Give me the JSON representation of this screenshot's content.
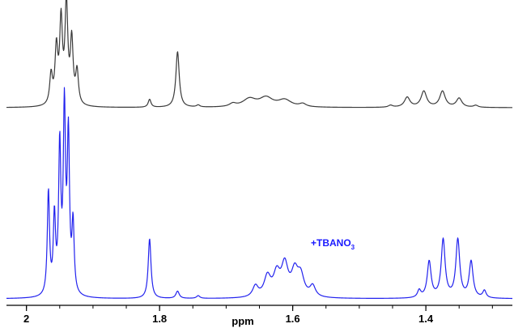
{
  "chart_data": {
    "type": "line",
    "xlabel": "ppm",
    "x_reversed": true,
    "xlim": [
      2.03,
      1.27
    ],
    "x_ticks": [
      {
        "value": 2.0,
        "label": "2"
      },
      {
        "value": 1.8,
        "label": "1.8"
      },
      {
        "value": 1.6,
        "label": "1.6"
      },
      {
        "value": 1.4,
        "label": "1.4"
      }
    ],
    "annotation": {
      "main": "+TBANO",
      "subscript": "3"
    },
    "series": [
      {
        "color": "#3a3a3a",
        "intensity_max": 100,
        "peaks": [
          {
            "ppm": 1.963,
            "height": 30,
            "width": 0.0025
          },
          {
            "ppm": 1.955,
            "height": 55,
            "width": 0.0025
          },
          {
            "ppm": 1.948,
            "height": 82,
            "width": 0.0025
          },
          {
            "ppm": 1.94,
            "height": 100,
            "width": 0.0025
          },
          {
            "ppm": 1.932,
            "height": 63,
            "width": 0.0025
          },
          {
            "ppm": 1.924,
            "height": 33,
            "width": 0.0025
          },
          {
            "ppm": 1.815,
            "height": 8,
            "width": 0.0025
          },
          {
            "ppm": 1.773,
            "height": 56,
            "width": 0.003
          },
          {
            "ppm": 1.742,
            "height": 2,
            "width": 0.003
          },
          {
            "ppm": 1.69,
            "height": 3,
            "width": 0.006
          },
          {
            "ppm": 1.665,
            "height": 8,
            "width": 0.012
          },
          {
            "ppm": 1.64,
            "height": 9,
            "width": 0.012
          },
          {
            "ppm": 1.612,
            "height": 7,
            "width": 0.012
          },
          {
            "ppm": 1.585,
            "height": 3,
            "width": 0.006
          },
          {
            "ppm": 1.453,
            "height": 2,
            "width": 0.004
          },
          {
            "ppm": 1.428,
            "height": 10,
            "width": 0.005
          },
          {
            "ppm": 1.403,
            "height": 16,
            "width": 0.005
          },
          {
            "ppm": 1.375,
            "height": 16,
            "width": 0.005
          },
          {
            "ppm": 1.35,
            "height": 9,
            "width": 0.005
          },
          {
            "ppm": 1.325,
            "height": 2,
            "width": 0.004
          }
        ]
      },
      {
        "color": "#2222ee",
        "intensity_max": 100,
        "peaks": [
          {
            "ppm": 1.967,
            "height": 57,
            "width": 0.002
          },
          {
            "ppm": 1.958,
            "height": 42,
            "width": 0.002
          },
          {
            "ppm": 1.95,
            "height": 80,
            "width": 0.002
          },
          {
            "ppm": 1.943,
            "height": 100,
            "width": 0.002
          },
          {
            "ppm": 1.937,
            "height": 85,
            "width": 0.002
          },
          {
            "ppm": 1.93,
            "height": 38,
            "width": 0.002
          },
          {
            "ppm": 1.815,
            "height": 33,
            "width": 0.0025
          },
          {
            "ppm": 1.773,
            "height": 4,
            "width": 0.003
          },
          {
            "ppm": 1.742,
            "height": 1.5,
            "width": 0.003
          },
          {
            "ppm": 1.656,
            "height": 6,
            "width": 0.005
          },
          {
            "ppm": 1.638,
            "height": 11,
            "width": 0.006
          },
          {
            "ppm": 1.624,
            "height": 12,
            "width": 0.006
          },
          {
            "ppm": 1.612,
            "height": 17,
            "width": 0.006
          },
          {
            "ppm": 1.597,
            "height": 13,
            "width": 0.006
          },
          {
            "ppm": 1.588,
            "height": 11,
            "width": 0.006
          },
          {
            "ppm": 1.57,
            "height": 6,
            "width": 0.005
          },
          {
            "ppm": 1.41,
            "height": 4,
            "width": 0.003
          },
          {
            "ppm": 1.395,
            "height": 20,
            "width": 0.0035
          },
          {
            "ppm": 1.374,
            "height": 32,
            "width": 0.0035
          },
          {
            "ppm": 1.352,
            "height": 32,
            "width": 0.0035
          },
          {
            "ppm": 1.332,
            "height": 20,
            "width": 0.0035
          },
          {
            "ppm": 1.312,
            "height": 4,
            "width": 0.003
          }
        ]
      }
    ]
  }
}
